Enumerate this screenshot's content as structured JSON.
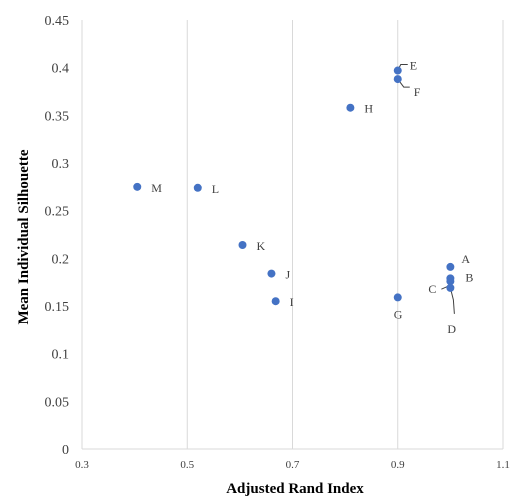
{
  "chart_data": {
    "type": "scatter",
    "title": "",
    "xlabel": "Adjusted Rand Index",
    "ylabel": "Mean Individual Silhouette",
    "xlim": [
      0.3,
      1.1
    ],
    "ylim": [
      0,
      0.45
    ],
    "x_ticks": [
      "0.3",
      "0.5",
      "0.7",
      "0.9",
      "1.1"
    ],
    "y_ticks": [
      "0",
      "0.05",
      "0.1",
      "0.15",
      "0.2",
      "0.25",
      "0.3",
      "0.35",
      "0.4",
      "0.45"
    ],
    "grid": "vertical",
    "marker_color": "#4472C4",
    "points": [
      {
        "label": "A",
        "x": 1.0,
        "y": 0.191
      },
      {
        "label": "B",
        "x": 1.0,
        "y": 0.179
      },
      {
        "label": "C",
        "x": 1.0,
        "y": 0.176
      },
      {
        "label": "D",
        "x": 1.0,
        "y": 0.169
      },
      {
        "label": "E",
        "x": 0.9,
        "y": 0.397
      },
      {
        "label": "F",
        "x": 0.9,
        "y": 0.388
      },
      {
        "label": "G",
        "x": 0.9,
        "y": 0.159
      },
      {
        "label": "H",
        "x": 0.81,
        "y": 0.358
      },
      {
        "label": "I",
        "x": 0.668,
        "y": 0.155
      },
      {
        "label": "J",
        "x": 0.66,
        "y": 0.184
      },
      {
        "label": "K",
        "x": 0.605,
        "y": 0.214
      },
      {
        "label": "L",
        "x": 0.52,
        "y": 0.274
      },
      {
        "label": "M",
        "x": 0.405,
        "y": 0.275
      }
    ]
  }
}
